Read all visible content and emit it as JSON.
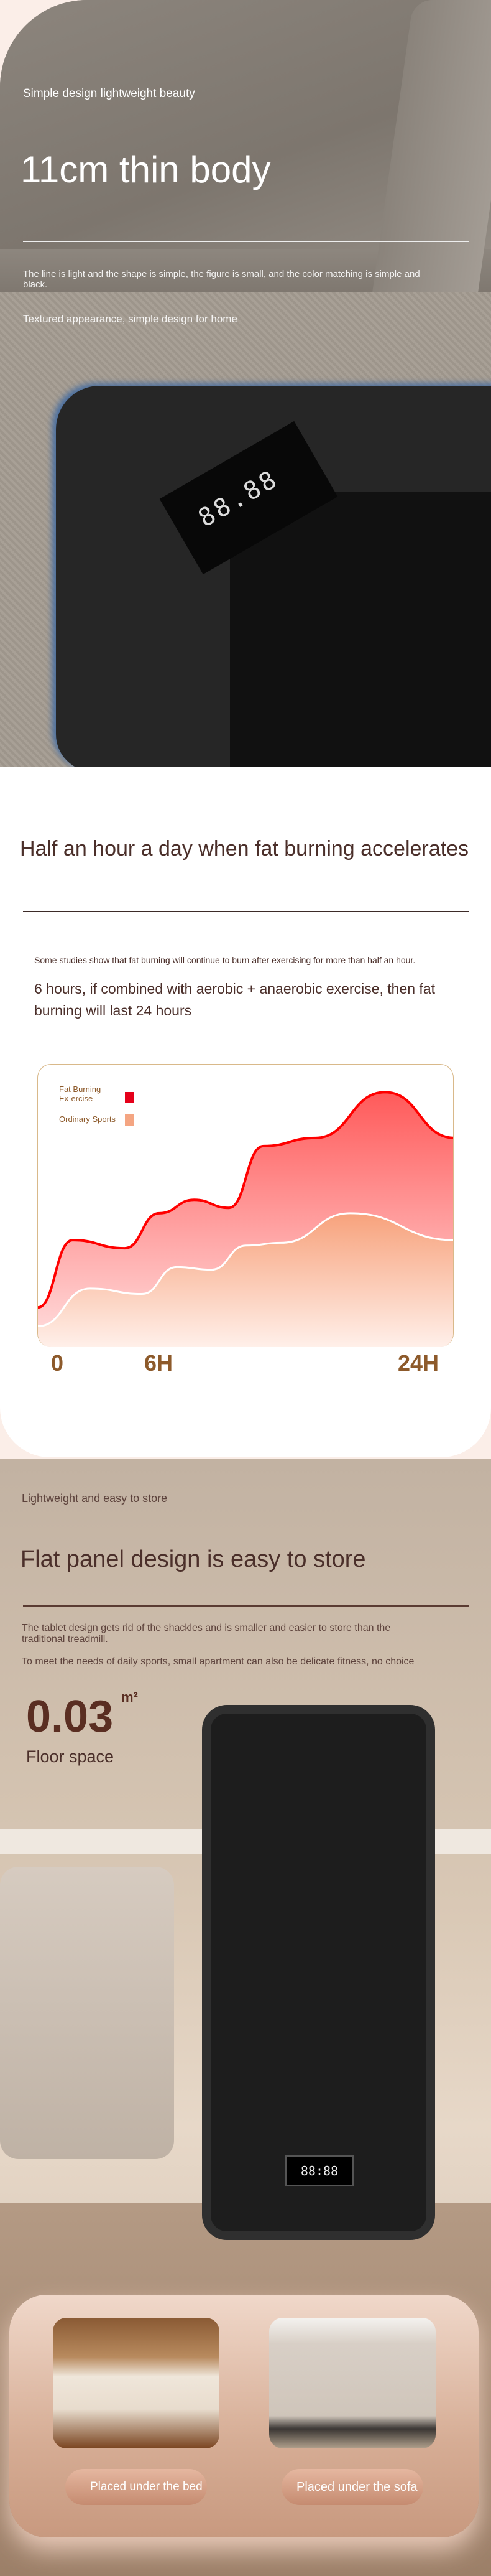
{
  "hero": {
    "eyebrow": "Simple design lightweight beauty",
    "title": "11cm thin body",
    "para1": "The line is light and the shape is simple, the figure is small, and the color matching is simple and black.",
    "para2": "Textured appearance, simple design for home",
    "display_digits": "88.88"
  },
  "fat": {
    "title": "Half an hour a day when fat burning accelerates",
    "note": "Some studies show that fat burning will continue to burn after exercising for more than half an hour.",
    "lead": "6 hours, if combined with aerobic + anaerobic exercise, then fat burning will last 24 hours"
  },
  "chart_data": {
    "type": "area",
    "x_ticks": [
      "0",
      "6H",
      "24H"
    ],
    "xlim": [
      0,
      24
    ],
    "legend_position": "top-left",
    "grid": false,
    "series": [
      {
        "name": "Fat Burning Ex-ercise",
        "color": "#ff0000",
        "x": [
          0,
          2,
          5,
          7,
          9,
          11,
          13,
          16,
          20,
          24
        ],
        "values": [
          15,
          40,
          37,
          50,
          55,
          52,
          75,
          78,
          95,
          78
        ]
      },
      {
        "name": "Ordinary Sports",
        "color": "#f4a582",
        "x": [
          0,
          3,
          6,
          8,
          10,
          12,
          14,
          18,
          24
        ],
        "values": [
          8,
          22,
          20,
          30,
          29,
          38,
          39,
          50,
          40
        ]
      }
    ]
  },
  "store": {
    "eyebrow": "Lightweight and easy to store",
    "title": "Flat panel design is easy to store",
    "para1": "The tablet design gets rid of the shackles and is smaller and easier to store than the traditional treadmill.",
    "para2": "To meet the needs of daily sports, small apartment can also be delicate fitness, no choice",
    "stat_value": "0.03",
    "stat_unit": "m²",
    "stat_label": "Floor space",
    "display_digits": "88:88"
  },
  "placement": [
    {
      "label": "Placed under the bed"
    },
    {
      "label": "Placed under the sofa"
    }
  ]
}
